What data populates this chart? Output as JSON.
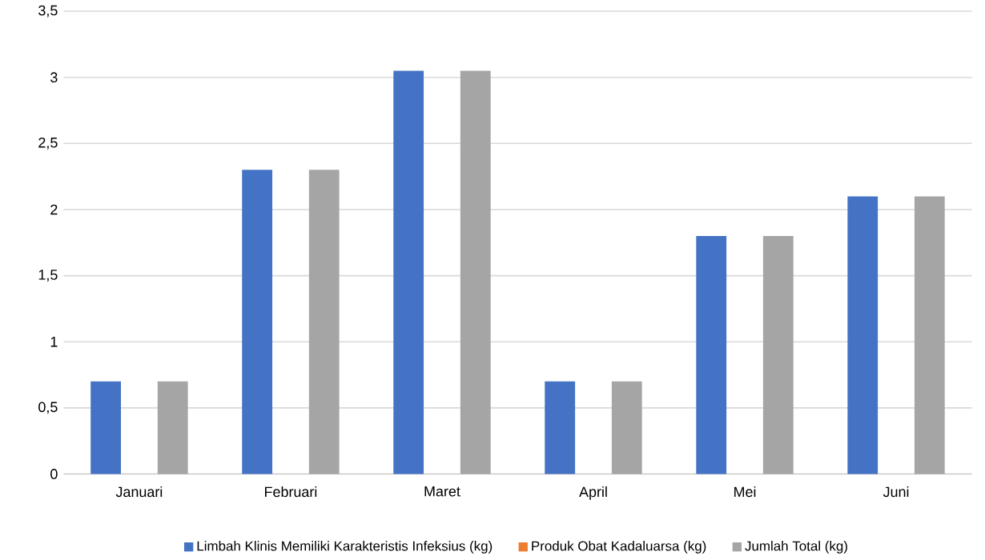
{
  "chart_data": {
    "type": "bar",
    "categories": [
      "Januari",
      "Februari",
      "Maret",
      "April",
      "Mei",
      "Juni"
    ],
    "series": [
      {
        "name": "Limbah Klinis Memiliki Karakteristis Infeksius (kg)",
        "color": "#4472c4",
        "values": [
          0.7,
          2.3,
          3.05,
          0.7,
          1.8,
          2.1
        ]
      },
      {
        "name": "Produk Obat Kadaluarsa (kg)",
        "color": "#ed7d31",
        "values": [
          0,
          0,
          0,
          0,
          0,
          0
        ]
      },
      {
        "name": "Jumlah  Total (kg)",
        "color": "#a5a5a5",
        "values": [
          0.7,
          2.3,
          3.05,
          0.7,
          1.8,
          2.1
        ]
      }
    ],
    "ylim": [
      0,
      3.5
    ],
    "yticks": [
      {
        "value": 0,
        "label": "0"
      },
      {
        "value": 0.5,
        "label": "0,5"
      },
      {
        "value": 1,
        "label": "1"
      },
      {
        "value": 1.5,
        "label": "1,5"
      },
      {
        "value": 2,
        "label": "2"
      },
      {
        "value": 2.5,
        "label": "2,5"
      },
      {
        "value": 3,
        "label": "3"
      },
      {
        "value": 3.5,
        "label": "3,5"
      }
    ],
    "grid": "y",
    "legend": "bottom"
  }
}
